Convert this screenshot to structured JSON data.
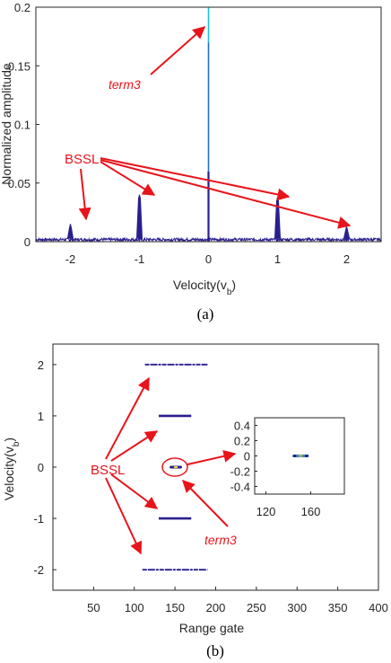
{
  "colors": {
    "trace": "#2a1f8f",
    "center_trace": "#1f6fd1",
    "center_top": "#18c3e0",
    "annotation": "#e8141b",
    "axis": "#262626"
  },
  "chart_data": [
    {
      "type": "line",
      "panel": "(a)",
      "xlabel": "Velocity(v_b)",
      "ylabel": "Normalized amplitude",
      "xlim": [
        -2.5,
        2.5
      ],
      "ylim": [
        0,
        0.2
      ],
      "x_ticks": [
        "-2",
        "-1",
        "0",
        "1",
        "2"
      ],
      "y_ticks": [
        "0",
        "0.05",
        "0.1",
        "0.15",
        "0.2"
      ],
      "grid": false,
      "noise_floor": 0.003,
      "peaks": [
        {
          "x": -2,
          "y": 0.015
        },
        {
          "x": -1,
          "y": 0.04
        },
        {
          "x": 0,
          "y": 0.2
        },
        {
          "x": 1,
          "y": 0.038
        },
        {
          "x": 2,
          "y": 0.013
        }
      ],
      "annotations": [
        {
          "text": "term3",
          "style": "italic"
        },
        {
          "text": "BSSL"
        }
      ]
    },
    {
      "type": "scatter",
      "panel": "(b)",
      "xlabel": "Range gate",
      "ylabel": "Velocity(v_b)",
      "xlim": [
        0,
        400
      ],
      "ylim": [
        -2.4,
        2.4
      ],
      "x_ticks": [
        "50",
        "100",
        "150",
        "200",
        "250",
        "300",
        "350",
        "400"
      ],
      "y_ticks": [
        "-2",
        "-1",
        "0",
        "1",
        "2"
      ],
      "grid": false,
      "streaks": [
        {
          "y": 2,
          "x_start": 113,
          "x_end": 190
        },
        {
          "y": 1,
          "x_start": 130,
          "x_end": 170
        },
        {
          "y": 0,
          "x_start": 145,
          "x_end": 157
        },
        {
          "y": -1,
          "x_start": 130,
          "x_end": 170
        },
        {
          "y": -2,
          "x_start": 110,
          "x_end": 190
        }
      ],
      "inset": {
        "xlim": [
          110,
          190
        ],
        "ylim": [
          -0.5,
          0.5
        ],
        "x_ticks": [
          "120",
          "160"
        ],
        "y_ticks": [
          "0.4",
          "0.2",
          "0",
          "-0.2",
          "-0.4"
        ],
        "blob": {
          "x_start": 145,
          "x_end": 157,
          "y": 0
        }
      },
      "annotations": [
        {
          "text": "BSSL"
        },
        {
          "text": "term3",
          "style": "italic"
        }
      ]
    }
  ]
}
